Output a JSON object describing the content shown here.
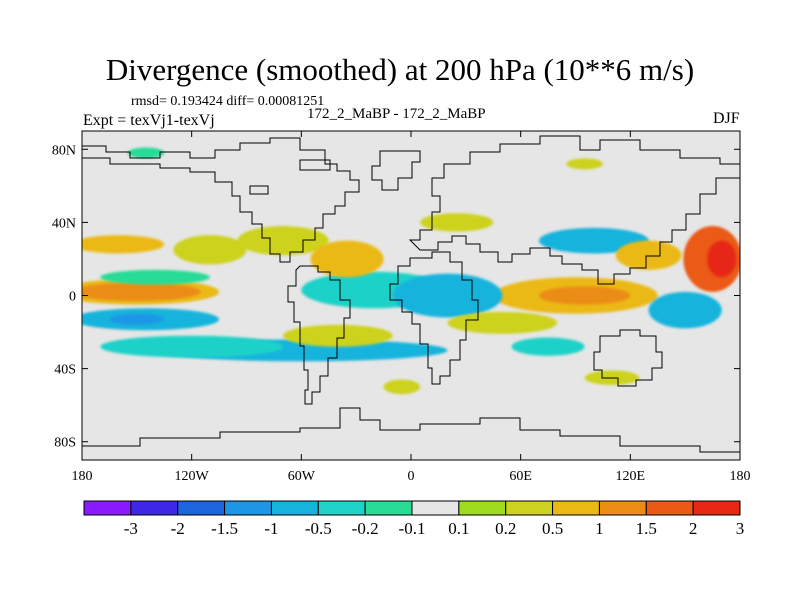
{
  "chart_data": {
    "type": "heatmap",
    "title": "Divergence (smoothed) at 200 hPa (10**6 m/s)",
    "stats": "rmsd= 0.193424 diff= 0.00081251",
    "subtitle": "172_2_MaBP - 172_2_MaBP",
    "experiment": "Expt = texVj1-texVj",
    "season": "DJF",
    "x_range": [
      -180,
      180
    ],
    "y_range": [
      -90,
      90
    ],
    "x_ticks": [
      {
        "value": -180,
        "label": "180"
      },
      {
        "value": -120,
        "label": "120W"
      },
      {
        "value": -60,
        "label": "60W"
      },
      {
        "value": 0,
        "label": "0"
      },
      {
        "value": 60,
        "label": "60E"
      },
      {
        "value": 120,
        "label": "120E"
      },
      {
        "value": 180,
        "label": "180"
      }
    ],
    "y_ticks": [
      {
        "value": 80,
        "label": "80N"
      },
      {
        "value": 40,
        "label": "40N"
      },
      {
        "value": 0,
        "label": "0"
      },
      {
        "value": -40,
        "label": "40S"
      },
      {
        "value": -80,
        "label": "80S"
      }
    ],
    "colorbar": {
      "levels": [
        "-3",
        "-2",
        "-1.5",
        "-1",
        "-0.5",
        "-0.2",
        "-0.1",
        "0.1",
        "0.2",
        "0.5",
        "1",
        "1.5",
        "2",
        "3"
      ],
      "colors": [
        "#8c1aff",
        "#3c28e6",
        "#1e64dc",
        "#1e96e6",
        "#14b4dc",
        "#1ed2c8",
        "#28dc96",
        "#e6e6e6",
        "#a0dc1e",
        "#cdd21e",
        "#ebb914",
        "#eb8c14",
        "#eb5a14",
        "#e62814"
      ]
    },
    "features": [
      {
        "name": "equatorial-core-west",
        "lon": -150,
        "lat": 2,
        "rlon": 35,
        "rlat": 5,
        "level": 11
      },
      {
        "name": "equatorial-positive-west",
        "lon": -150,
        "lat": 2,
        "rlon": 45,
        "rlat": 7,
        "level": 10
      },
      {
        "name": "south-pacific-negative",
        "lon": -145,
        "lat": -13,
        "rlon": 40,
        "rlat": 6,
        "level": 4
      },
      {
        "name": "south-pacific-negative-core",
        "lon": -150,
        "lat": -13,
        "rlon": 15,
        "rlat": 3,
        "level": 3
      },
      {
        "name": "southern-band-east",
        "lon": -60,
        "lat": -30,
        "rlon": 80,
        "rlat": 6,
        "level": 4
      },
      {
        "name": "southern-band-west",
        "lon": -120,
        "lat": -28,
        "rlon": 50,
        "rlat": 6,
        "level": 5
      },
      {
        "name": "southern-band-positive",
        "lon": -40,
        "lat": -22,
        "rlon": 30,
        "rlat": 6,
        "level": 9
      },
      {
        "name": "atlantic-negative",
        "lon": -20,
        "lat": 3,
        "rlon": 40,
        "rlat": 10,
        "level": 5
      },
      {
        "name": "africa-negative",
        "lon": 20,
        "lat": 0,
        "rlon": 30,
        "rlat": 12,
        "level": 4
      },
      {
        "name": "indian-positive",
        "lon": 90,
        "lat": 0,
        "rlon": 45,
        "rlat": 10,
        "level": 10
      },
      {
        "name": "indian-positive-core",
        "lon": 95,
        "lat": 0,
        "rlon": 25,
        "rlat": 5,
        "level": 11
      },
      {
        "name": "west-pacific-negative",
        "lon": 150,
        "lat": -8,
        "rlon": 20,
        "rlat": 10,
        "level": 4
      },
      {
        "name": "west-pacific-positive",
        "lon": 165,
        "lat": 20,
        "rlon": 16,
        "rlat": 18,
        "level": 12
      },
      {
        "name": "west-pacific-positive-core",
        "lon": 170,
        "lat": 20,
        "rlon": 8,
        "rlat": 10,
        "level": 13
      },
      {
        "name": "china-negative",
        "lon": 100,
        "lat": 30,
        "rlon": 30,
        "rlat": 7,
        "level": 4
      },
      {
        "name": "china-positive",
        "lon": 130,
        "lat": 22,
        "rlon": 18,
        "rlat": 8,
        "level": 10
      },
      {
        "name": "north-pacific-positive",
        "lon": -160,
        "lat": 28,
        "rlon": 25,
        "rlat": 5,
        "level": 10
      },
      {
        "name": "north-pacific-positive-b",
        "lon": -110,
        "lat": 25,
        "rlon": 20,
        "rlat": 8,
        "level": 9
      },
      {
        "name": "north-america-positive",
        "lon": -70,
        "lat": 30,
        "rlon": 25,
        "rlat": 8,
        "level": 9
      },
      {
        "name": "mid-atlantic-positive",
        "lon": -35,
        "lat": 20,
        "rlon": 20,
        "rlat": 10,
        "level": 10
      },
      {
        "name": "europe-positive",
        "lon": 25,
        "lat": 40,
        "rlon": 20,
        "rlat": 5,
        "level": 9
      },
      {
        "name": "north-pacific-negative",
        "lon": -140,
        "lat": 10,
        "rlon": 30,
        "rlat": 4,
        "level": 6
      },
      {
        "name": "subtropical-positive",
        "lon": 50,
        "lat": -15,
        "rlon": 30,
        "rlat": 6,
        "level": 9
      },
      {
        "name": "southern-ocean-positive",
        "lon": -5,
        "lat": -50,
        "rlon": 10,
        "rlat": 4,
        "level": 9
      },
      {
        "name": "arctic-negative",
        "lon": -145,
        "lat": 78,
        "rlon": 10,
        "rlat": 3,
        "level": 6
      },
      {
        "name": "arctic-positive",
        "lon": 95,
        "lat": 72,
        "rlon": 10,
        "rlat": 3,
        "level": 9
      },
      {
        "name": "indian-south-negative",
        "lon": 75,
        "lat": -28,
        "rlon": 20,
        "rlat": 5,
        "level": 5
      },
      {
        "name": "australia-positive",
        "lon": 110,
        "lat": -45,
        "rlon": 15,
        "rlat": 4,
        "level": 9
      }
    ]
  }
}
